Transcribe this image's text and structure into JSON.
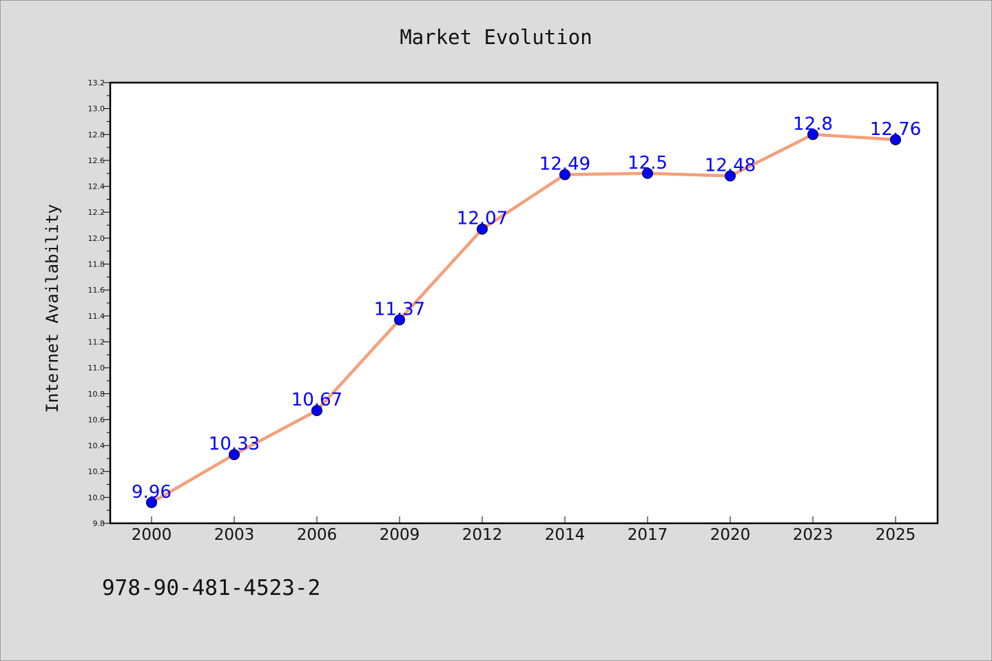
{
  "chart_data": {
    "type": "line",
    "title": "Market Evolution",
    "xlabel": "",
    "ylabel": "Internet Availability",
    "categories": [
      "2000",
      "2003",
      "2006",
      "2009",
      "2012",
      "2014",
      "2017",
      "2020",
      "2023",
      "2025"
    ],
    "series": [
      {
        "values": [
          9.96,
          10.33,
          10.67,
          11.37,
          12.07,
          12.49,
          12.5,
          12.48,
          12.8,
          12.76
        ],
        "labels": [
          "9.96",
          "10.33",
          "10.67",
          "11.37",
          "12.07",
          "12.49",
          "12.5",
          "12.48",
          "12.8",
          "12.76"
        ],
        "line_color": "#f4a07a",
        "marker_color": "#0000ff",
        "label_color": "#0000ff"
      }
    ],
    "ylim": [
      9.8,
      13.2
    ],
    "yticks": [
      "9.8",
      "10.0",
      "10.2",
      "10.4",
      "10.6",
      "10.8",
      "11.0",
      "11.2",
      "11.4",
      "11.6",
      "11.8",
      "12.0",
      "12.2",
      "12.4",
      "12.6",
      "12.8",
      "13.0",
      "13.2"
    ],
    "grid": false,
    "legend": "none"
  },
  "footer": {
    "isbn": "978-90-481-4523-2"
  }
}
